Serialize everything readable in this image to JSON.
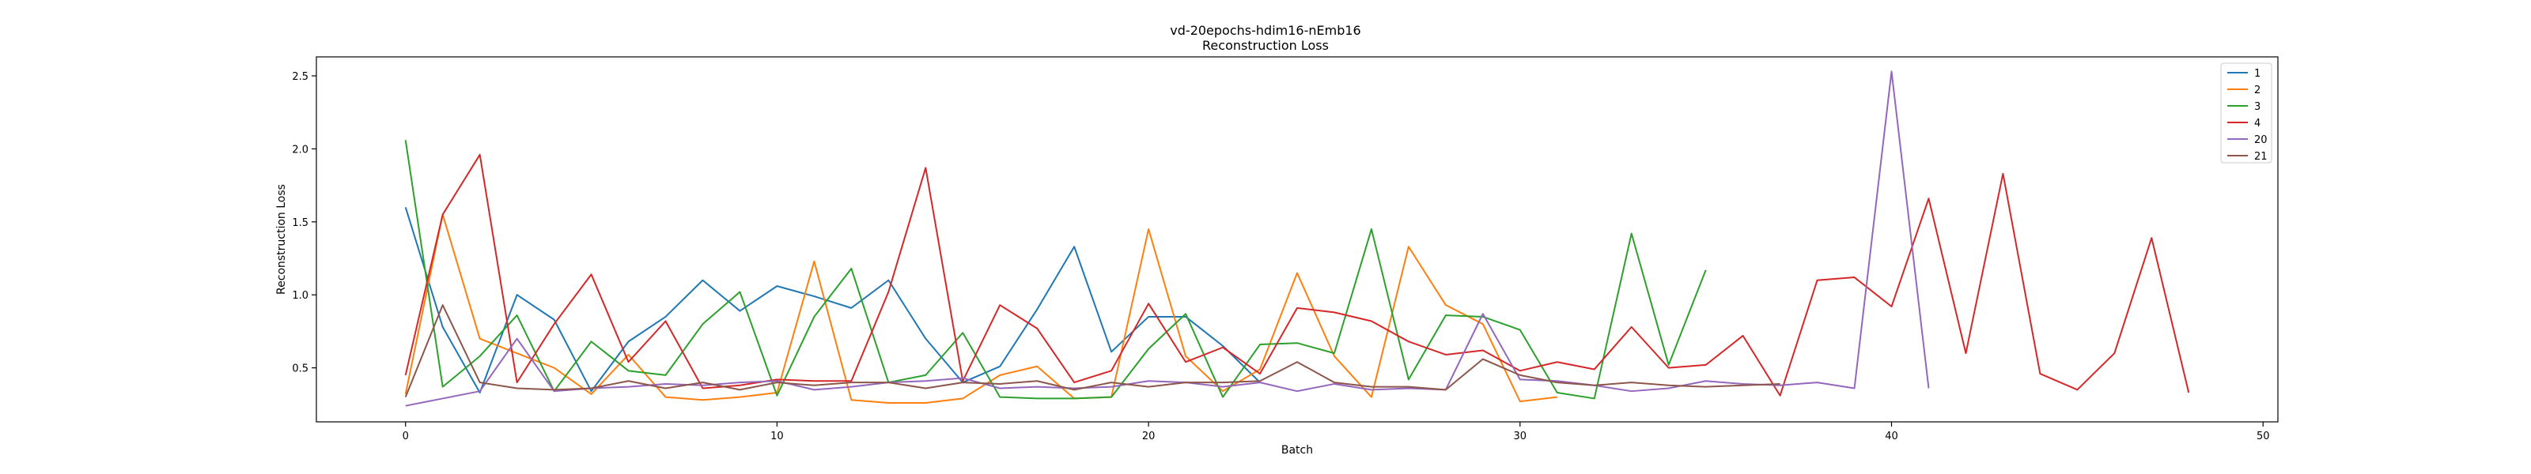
{
  "chart_data": {
    "type": "line",
    "title": "vd-20epochs-hdim16-nEmb16",
    "subtitle": "Reconstruction Loss",
    "xlabel": "Batch",
    "ylabel": "Reconstruction Loss",
    "xlim": [
      -2.4,
      50.4
    ],
    "ylim": [
      0.13,
      2.63
    ],
    "xticks": [
      0,
      10,
      20,
      30,
      40,
      50
    ],
    "yticks": [
      0.5,
      1.0,
      1.5,
      2.0,
      2.5
    ],
    "ytick_labels": [
      "0.5",
      "1.0",
      "1.5",
      "2.0",
      "2.5"
    ],
    "grid": false,
    "legend_position": "top-right",
    "series": [
      {
        "name": "1",
        "color": "#1f77b4",
        "values": [
          1.6,
          0.78,
          0.33,
          1.0,
          0.83,
          0.34,
          0.68,
          0.85,
          1.1,
          0.89,
          1.06,
          0.99,
          0.91,
          1.1,
          0.7,
          0.4,
          0.51,
          0.9,
          1.33,
          0.61,
          0.85,
          0.85,
          0.65,
          0.4
        ]
      },
      {
        "name": "2",
        "color": "#ff7f0e",
        "values": [
          0.32,
          1.55,
          0.7,
          0.6,
          0.5,
          0.32,
          0.59,
          0.3,
          0.28,
          0.3,
          0.33,
          1.23,
          0.28,
          0.26,
          0.26,
          0.29,
          0.45,
          0.51,
          0.29,
          0.3,
          1.45,
          0.58,
          0.34,
          0.49,
          1.15,
          0.58,
          0.3,
          1.33,
          0.93,
          0.8,
          0.27,
          0.3
        ]
      },
      {
        "name": "3",
        "color": "#2ca02c",
        "values": [
          2.06,
          0.37,
          0.58,
          0.86,
          0.34,
          0.68,
          0.48,
          0.45,
          0.8,
          1.02,
          0.31,
          0.85,
          1.18,
          0.4,
          0.45,
          0.74,
          0.3,
          0.29,
          0.29,
          0.3,
          0.63,
          0.87,
          0.3,
          0.66,
          0.67,
          0.6,
          1.45,
          0.42,
          0.86,
          0.85,
          0.76,
          0.33,
          0.29,
          1.42,
          0.52,
          1.17
        ]
      },
      {
        "name": "4",
        "color": "#d62728",
        "values": [
          0.45,
          1.55,
          1.96,
          0.4,
          0.8,
          1.14,
          0.54,
          0.82,
          0.36,
          0.38,
          0.42,
          0.41,
          0.41,
          1.02,
          1.87,
          0.41,
          0.93,
          0.77,
          0.4,
          0.48,
          0.94,
          0.54,
          0.64,
          0.46,
          0.91,
          0.88,
          0.82,
          0.68,
          0.59,
          0.62,
          0.48,
          0.54,
          0.49,
          0.78,
          0.5,
          0.52,
          0.72,
          0.31,
          1.1,
          1.12,
          0.92,
          1.66,
          0.6,
          1.83,
          0.46,
          0.35,
          0.6,
          1.39,
          0.33
        ]
      },
      {
        "name": "20",
        "color": "#9467bd",
        "values": [
          0.24,
          0.29,
          0.34,
          0.7,
          0.34,
          0.36,
          0.37,
          0.39,
          0.38,
          0.4,
          0.41,
          0.35,
          0.37,
          0.4,
          0.41,
          0.43,
          0.36,
          0.37,
          0.36,
          0.37,
          0.41,
          0.4,
          0.37,
          0.4,
          0.34,
          0.39,
          0.35,
          0.36,
          0.35,
          0.87,
          0.42,
          0.41,
          0.38,
          0.34,
          0.36,
          0.41,
          0.39,
          0.38,
          0.4,
          0.36,
          2.53,
          0.36
        ]
      },
      {
        "name": "21",
        "color": "#8c564b",
        "values": [
          0.3,
          0.93,
          0.4,
          0.36,
          0.35,
          0.36,
          0.41,
          0.36,
          0.4,
          0.35,
          0.4,
          0.38,
          0.4,
          0.4,
          0.36,
          0.4,
          0.39,
          0.41,
          0.35,
          0.4,
          0.37,
          0.4,
          0.4,
          0.41,
          0.54,
          0.4,
          0.37,
          0.37,
          0.35,
          0.56,
          0.45,
          0.4,
          0.38,
          0.4,
          0.38,
          0.37,
          0.38,
          0.39
        ]
      }
    ]
  }
}
